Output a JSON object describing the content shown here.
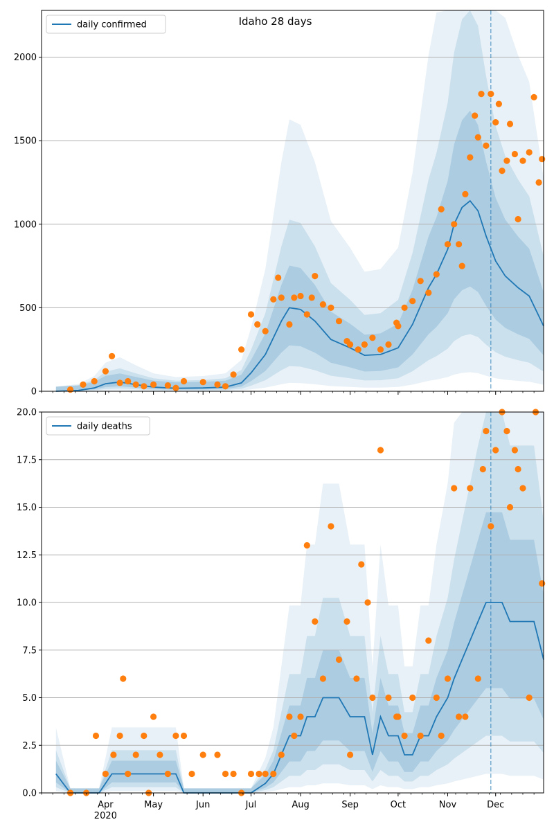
{
  "chart_data": [
    {
      "type": "line",
      "title": "Idaho 28 days",
      "ylim": [
        0,
        2280
      ],
      "yticks": [
        0,
        500,
        1000,
        1500,
        2000
      ],
      "ytick_labels": [
        "0",
        "500",
        "1000",
        "1500",
        "2000"
      ],
      "grid": "horizontal",
      "legend_placement": "top-left",
      "series": [
        {
          "name": "daily confirmed",
          "kind": "line",
          "color": "#1f77b4",
          "x": [
            "2020-03-01",
            "2020-03-15",
            "2020-03-25",
            "2020-04-01",
            "2020-04-10",
            "2020-04-20",
            "2020-05-01",
            "2020-05-15",
            "2020-06-01",
            "2020-06-15",
            "2020-06-25",
            "2020-07-01",
            "2020-07-10",
            "2020-07-20",
            "2020-07-25",
            "2020-08-01",
            "2020-08-10",
            "2020-08-20",
            "2020-09-01",
            "2020-09-10",
            "2020-09-20",
            "2020-10-01",
            "2020-10-10",
            "2020-10-20",
            "2020-10-25",
            "2020-11-01",
            "2020-11-05",
            "2020-11-10",
            "2020-11-15",
            "2020-11-20",
            "2020-11-25",
            "2020-12-01",
            "2020-12-07",
            "2020-12-15",
            "2020-12-22",
            "2020-12-28",
            "2020-12-31"
          ],
          "values": [
            0,
            5,
            20,
            45,
            55,
            40,
            25,
            18,
            20,
            25,
            50,
            110,
            220,
            420,
            500,
            490,
            420,
            310,
            260,
            215,
            220,
            260,
            400,
            620,
            700,
            850,
            1000,
            1100,
            1140,
            1080,
            930,
            780,
            690,
            620,
            570,
            450,
            390
          ]
        },
        {
          "name": "",
          "kind": "scatter",
          "color": "#ff7f0e",
          "x": [
            "2020-03-10",
            "2020-03-18",
            "2020-03-25",
            "2020-04-01",
            "2020-04-05",
            "2020-04-10",
            "2020-04-15",
            "2020-04-20",
            "2020-04-25",
            "2020-05-01",
            "2020-05-10",
            "2020-05-15",
            "2020-05-20",
            "2020-06-01",
            "2020-06-10",
            "2020-06-15",
            "2020-06-20",
            "2020-06-25",
            "2020-07-01",
            "2020-07-05",
            "2020-07-10",
            "2020-07-15",
            "2020-07-18",
            "2020-07-20",
            "2020-07-25",
            "2020-07-28",
            "2020-08-01",
            "2020-08-05",
            "2020-08-08",
            "2020-08-10",
            "2020-08-15",
            "2020-08-20",
            "2020-08-25",
            "2020-08-30",
            "2020-09-01",
            "2020-09-06",
            "2020-09-10",
            "2020-09-15",
            "2020-09-20",
            "2020-09-25",
            "2020-09-30",
            "2020-10-01",
            "2020-10-05",
            "2020-10-10",
            "2020-10-15",
            "2020-10-20",
            "2020-10-25",
            "2020-10-28",
            "2020-11-01",
            "2020-11-05",
            "2020-11-08",
            "2020-11-10",
            "2020-11-12",
            "2020-11-15",
            "2020-11-18",
            "2020-11-20",
            "2020-11-22",
            "2020-11-25",
            "2020-11-28",
            "2020-12-01",
            "2020-12-03",
            "2020-12-05",
            "2020-12-08",
            "2020-12-10",
            "2020-12-13",
            "2020-12-15",
            "2020-12-18",
            "2020-12-22",
            "2020-12-25",
            "2020-12-28",
            "2020-12-30"
          ],
          "values": [
            10,
            40,
            60,
            120,
            210,
            50,
            60,
            40,
            30,
            40,
            35,
            20,
            60,
            55,
            40,
            30,
            100,
            250,
            460,
            400,
            360,
            550,
            680,
            560,
            400,
            560,
            570,
            460,
            560,
            690,
            520,
            500,
            420,
            300,
            280,
            250,
            280,
            320,
            250,
            280,
            410,
            390,
            500,
            540,
            660,
            590,
            700,
            1090,
            880,
            1000,
            880,
            750,
            1180,
            1400,
            1650,
            1520,
            1780,
            1470,
            1780,
            1610,
            1720,
            1320,
            1380,
            1600,
            1420,
            1030,
            1380,
            1430,
            1760,
            1250,
            1390
          ]
        }
      ]
    },
    {
      "type": "line",
      "title": "",
      "ylim": [
        0,
        20
      ],
      "yticks": [
        0,
        2.5,
        5,
        7.5,
        10,
        12.5,
        15,
        17.5,
        20
      ],
      "ytick_labels": [
        "0.0",
        "2.5",
        "5.0",
        "7.5",
        "10.0",
        "12.5",
        "15.0",
        "17.5",
        "20.0"
      ],
      "grid": "horizontal",
      "legend_placement": "top-left",
      "x_tick_labels": [
        "Apr",
        "May",
        "Jun",
        "Jul",
        "Aug",
        "Sep",
        "Oct",
        "Nov",
        "Dec"
      ],
      "x_tick_dates": [
        "2020-04-01",
        "2020-05-01",
        "2020-06-01",
        "2020-07-01",
        "2020-08-01",
        "2020-09-01",
        "2020-10-01",
        "2020-11-01",
        "2020-12-01"
      ],
      "x_year_label": "2020",
      "vline_date": "2020-11-28",
      "series": [
        {
          "name": "daily deaths",
          "kind": "line",
          "color": "#1f77b4",
          "x": [
            "2020-03-01",
            "2020-03-10",
            "2020-03-20",
            "2020-03-28",
            "2020-04-05",
            "2020-04-15",
            "2020-04-25",
            "2020-05-05",
            "2020-05-15",
            "2020-05-20",
            "2020-05-25",
            "2020-06-01",
            "2020-06-15",
            "2020-07-01",
            "2020-07-10",
            "2020-07-15",
            "2020-07-20",
            "2020-07-25",
            "2020-08-01",
            "2020-08-05",
            "2020-08-10",
            "2020-08-15",
            "2020-08-20",
            "2020-08-25",
            "2020-09-01",
            "2020-09-05",
            "2020-09-10",
            "2020-09-15",
            "2020-09-20",
            "2020-09-25",
            "2020-10-01",
            "2020-10-05",
            "2020-10-10",
            "2020-10-15",
            "2020-10-20",
            "2020-10-25",
            "2020-11-01",
            "2020-11-05",
            "2020-11-10",
            "2020-11-15",
            "2020-11-20",
            "2020-11-25",
            "2020-12-01",
            "2020-12-05",
            "2020-12-10",
            "2020-12-15",
            "2020-12-20",
            "2020-12-25",
            "2020-12-28",
            "2020-12-31"
          ],
          "values": [
            1,
            0,
            0,
            0,
            1,
            1,
            1,
            1,
            1,
            0,
            0,
            0,
            0,
            0,
            0.5,
            1,
            2,
            3,
            3,
            4,
            4,
            5,
            5,
            5,
            4,
            4,
            4,
            2,
            4,
            3,
            3,
            2,
            2,
            3,
            3,
            4,
            5,
            6,
            7,
            8,
            9,
            10,
            10,
            10,
            9,
            9,
            9,
            9,
            8,
            7
          ]
        },
        {
          "name": "",
          "kind": "scatter",
          "color": "#ff7f0e",
          "x": [
            "2020-03-10",
            "2020-03-20",
            "2020-03-26",
            "2020-04-01",
            "2020-04-06",
            "2020-04-10",
            "2020-04-12",
            "2020-04-15",
            "2020-04-20",
            "2020-04-25",
            "2020-04-28",
            "2020-05-01",
            "2020-05-05",
            "2020-05-10",
            "2020-05-15",
            "2020-05-20",
            "2020-05-25",
            "2020-06-01",
            "2020-06-10",
            "2020-06-15",
            "2020-06-20",
            "2020-06-25",
            "2020-07-01",
            "2020-07-06",
            "2020-07-10",
            "2020-07-15",
            "2020-07-20",
            "2020-07-25",
            "2020-07-28",
            "2020-08-01",
            "2020-08-05",
            "2020-08-10",
            "2020-08-15",
            "2020-08-20",
            "2020-08-25",
            "2020-08-30",
            "2020-09-01",
            "2020-09-05",
            "2020-09-08",
            "2020-09-12",
            "2020-09-15",
            "2020-09-20",
            "2020-09-25",
            "2020-09-30",
            "2020-10-01",
            "2020-10-05",
            "2020-10-10",
            "2020-10-15",
            "2020-10-20",
            "2020-10-25",
            "2020-10-28",
            "2020-11-01",
            "2020-11-05",
            "2020-11-08",
            "2020-11-12",
            "2020-11-15",
            "2020-11-20",
            "2020-11-23",
            "2020-11-25",
            "2020-11-28",
            "2020-12-01",
            "2020-12-05",
            "2020-12-08",
            "2020-12-10",
            "2020-12-13",
            "2020-12-15",
            "2020-12-18",
            "2020-12-22",
            "2020-12-26",
            "2020-12-30"
          ],
          "values": [
            0,
            0,
            3,
            1,
            2,
            3,
            6,
            1,
            2,
            3,
            0,
            4,
            2,
            1,
            3,
            3,
            1,
            2,
            2,
            1,
            1,
            0,
            1,
            1,
            1,
            1,
            2,
            4,
            3,
            4,
            13,
            9,
            6,
            14,
            7,
            9,
            2,
            6,
            12,
            10,
            5,
            18,
            5,
            4,
            4,
            3,
            5,
            3,
            8,
            5,
            3,
            6,
            16,
            4,
            4,
            16,
            6,
            17,
            19,
            14,
            18,
            20,
            19,
            15,
            18,
            17,
            16,
            5,
            20,
            11
          ]
        }
      ]
    }
  ],
  "legend": {
    "top_label": "daily confirmed",
    "bottom_label": "daily deaths"
  },
  "colors": {
    "line": "#1f77b4",
    "points": "#ff7f0e",
    "band": "#1f77b4",
    "grid": "#b0b0b0",
    "vline": "#1f77b4"
  }
}
